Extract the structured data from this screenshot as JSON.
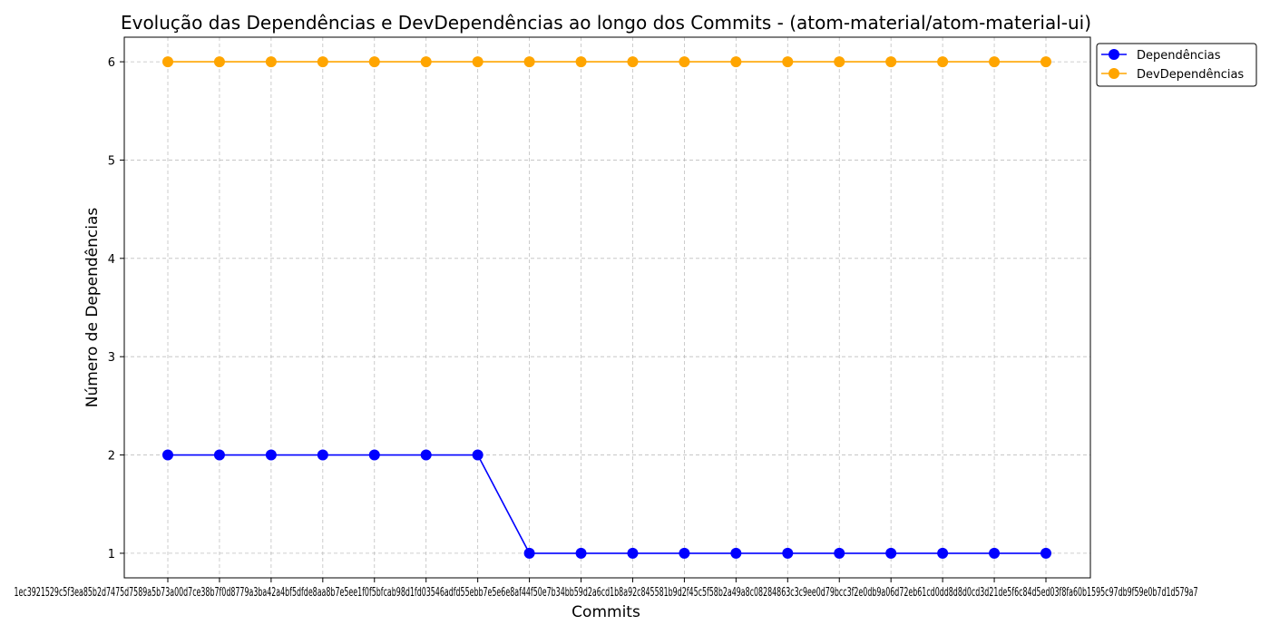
{
  "chart_data": {
    "type": "line",
    "title": "Evolução das Dependências e DevDependências ao longo dos Commits - (atom-material/atom-material-ui)",
    "xlabel": "Commits",
    "ylabel": "Número de Dependências",
    "ylim": [
      0.75,
      6.25
    ],
    "yticks": [
      1,
      2,
      3,
      4,
      5,
      6
    ],
    "grid": true,
    "legend_position": "outside-top-right",
    "x_tick_text": "1ec3921529c5f3ea85b2d7475d7589a5b73a00d7ce38b7f0d8779a3ba42a4bf5dfde8aa8b7e5ee1f0f5bfcab98d1fd03546adfd55ebb7e5e6e8af44f50e7b34bb59d2a6cd1b8a92c845581b9d2f45c5f58b2a49a8c08284863c3c9ee0d79bcc3f2e0db9a06d72eb61cd0dd8d8d0cd3d21de5f6c84d5ed03f8fa60b1595c97db9f59e0b7d1d579a7",
    "series": [
      {
        "name": "Dependências",
        "color": "#0000ff",
        "values": [
          2,
          2,
          2,
          2,
          2,
          2,
          2,
          1,
          1,
          1,
          1,
          1,
          1,
          1,
          1,
          1,
          1,
          1
        ]
      },
      {
        "name": "DevDependências",
        "color": "#ffa500",
        "values": [
          6,
          6,
          6,
          6,
          6,
          6,
          6,
          6,
          6,
          6,
          6,
          6,
          6,
          6,
          6,
          6,
          6,
          6
        ]
      }
    ]
  }
}
